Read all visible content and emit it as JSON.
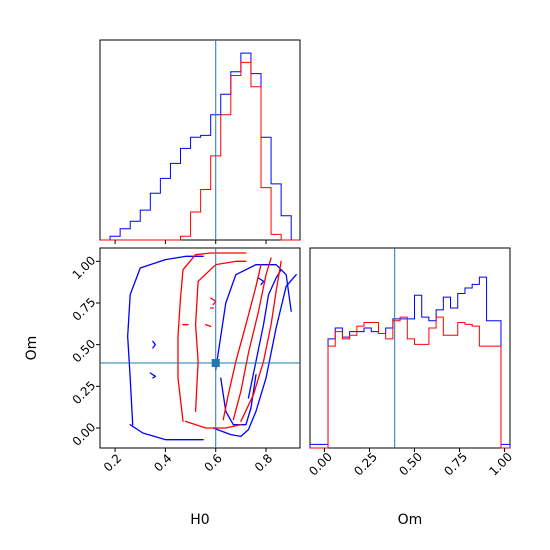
{
  "chart_data": {
    "type": "corner",
    "parameters": [
      "H0",
      "Om"
    ],
    "truths": {
      "H0": 0.6,
      "Om": 0.39
    },
    "colors": {
      "series_a": "#0000ff",
      "series_b": "#ff0000",
      "truth": "#1f77b4"
    },
    "grid": false,
    "legend": "none",
    "panels": [
      {
        "id": "h0-hist",
        "type": "step-histogram",
        "xlim": [
          0.14,
          0.935
        ],
        "ylim": [
          0,
          1.07
        ],
        "bins": [
          0.14,
          0.18,
          0.22,
          0.26,
          0.3,
          0.34,
          0.38,
          0.42,
          0.46,
          0.5,
          0.54,
          0.58,
          0.62,
          0.66,
          0.7,
          0.74,
          0.78,
          0.82,
          0.86,
          0.9,
          0.935
        ],
        "series": [
          {
            "color": "series_a",
            "values": [
              0.0,
              0.02,
              0.06,
              0.1,
              0.16,
              0.25,
              0.33,
              0.41,
              0.49,
              0.55,
              0.56,
              0.67,
              0.78,
              0.9,
              1.0,
              0.89,
              0.55,
              0.3,
              0.13,
              0.0
            ]
          },
          {
            "color": "series_b",
            "values": [
              0.0,
              0.0,
              0.0,
              0.0,
              0.0,
              0.0,
              0.0,
              0.0,
              0.02,
              0.15,
              0.27,
              0.45,
              0.67,
              0.88,
              0.95,
              0.82,
              0.28,
              0.03,
              0.0,
              0.0
            ]
          }
        ]
      },
      {
        "id": "om-hist",
        "type": "step-histogram",
        "xlim": [
          -0.08,
          1.03
        ],
        "ylim": [
          0,
          1.1
        ],
        "bins": [
          -0.08,
          -0.02,
          0.02,
          0.06,
          0.1,
          0.14,
          0.18,
          0.22,
          0.26,
          0.3,
          0.34,
          0.38,
          0.42,
          0.46,
          0.5,
          0.54,
          0.58,
          0.62,
          0.66,
          0.7,
          0.74,
          0.78,
          0.82,
          0.86,
          0.9,
          0.94,
          0.98,
          1.03
        ],
        "series": [
          {
            "color": "series_a",
            "values": [
              0.02,
              0.02,
              0.6,
              0.66,
              0.61,
              0.64,
              0.64,
              0.66,
              0.64,
              0.63,
              0.66,
              0.71,
              0.71,
              0.71,
              0.84,
              0.72,
              0.7,
              0.76,
              0.83,
              0.77,
              0.85,
              0.88,
              0.9,
              0.94,
              0.7,
              0.7,
              0.02
            ]
          },
          {
            "color": "series_b",
            "values": [
              0.0,
              0.0,
              0.56,
              0.64,
              0.6,
              0.62,
              0.67,
              0.69,
              0.69,
              0.63,
              0.6,
              0.7,
              0.72,
              0.6,
              0.57,
              0.57,
              0.66,
              0.72,
              0.62,
              0.62,
              0.69,
              0.68,
              0.67,
              0.56,
              0.56,
              0.56,
              0.0
            ]
          }
        ]
      },
      {
        "id": "joint",
        "type": "contour",
        "xlim": [
          0.14,
          0.935
        ],
        "ylim": [
          -0.12,
          1.08
        ],
        "series": [
          {
            "color": "series_a",
            "lines": [
              [
                [
                  0.27,
                  0.02
                ],
                [
                  0.26,
                  0.3
                ],
                [
                  0.25,
                  0.55
                ],
                [
                  0.26,
                  0.8
                ],
                [
                  0.3,
                  0.96
                ],
                [
                  0.4,
                  1.01
                ],
                [
                  0.48,
                  1.03
                ],
                [
                  0.55,
                  1.03
                ]
              ],
              [
                [
                  0.26,
                  0.02
                ],
                [
                  0.31,
                  -0.03
                ],
                [
                  0.4,
                  -0.07
                ],
                [
                  0.5,
                  -0.07
                ],
                [
                  0.55,
                  -0.07
                ]
              ],
              [
                [
                  0.59,
                  0.0
                ],
                [
                  0.66,
                  -0.04
                ],
                [
                  0.7,
                  -0.05
                ],
                [
                  0.73,
                  -0.01
                ],
                [
                  0.76,
                  0.1
                ],
                [
                  0.8,
                  0.3
                ],
                [
                  0.84,
                  0.6
                ],
                [
                  0.88,
                  0.85
                ],
                [
                  0.92,
                  0.92
                ]
              ],
              [
                [
                  0.6,
                  0.35
                ],
                [
                  0.62,
                  0.55
                ],
                [
                  0.64,
                  0.75
                ],
                [
                  0.68,
                  0.92
                ],
                [
                  0.76,
                  0.98
                ],
                [
                  0.84,
                  0.98
                ],
                [
                  0.88,
                  0.92
                ],
                [
                  0.9,
                  0.7
                ]
              ],
              [
                [
                  0.62,
                  0.3
                ],
                [
                  0.64,
                  0.1
                ],
                [
                  0.67,
                  0.02
                ],
                [
                  0.72,
                  0.02
                ],
                [
                  0.74,
                  0.12
                ],
                [
                  0.76,
                  0.32
                ]
              ],
              [
                [
                  0.73,
                  0.18
                ],
                [
                  0.76,
                  0.4
                ],
                [
                  0.79,
                  0.62
                ],
                [
                  0.81,
                  0.8
                ],
                [
                  0.84,
                  0.9
                ],
                [
                  0.86,
                  0.95
                ]
              ],
              [
                [
                  0.35,
                  0.52
                ],
                [
                  0.36,
                  0.5
                ],
                [
                  0.35,
                  0.48
                ]
              ],
              [
                [
                  0.34,
                  0.33
                ],
                [
                  0.36,
                  0.31
                ],
                [
                  0.35,
                  0.3
                ]
              ],
              [
                [
                  0.77,
                  0.9
                ],
                [
                  0.79,
                  0.88
                ],
                [
                  0.78,
                  0.86
                ]
              ]
            ]
          },
          {
            "color": "series_b",
            "lines": [
              [
                [
                  0.47,
                  0.04
                ],
                [
                  0.45,
                  0.3
                ],
                [
                  0.45,
                  0.55
                ],
                [
                  0.46,
                  0.78
                ],
                [
                  0.47,
                  0.95
                ],
                [
                  0.52,
                  1.04
                ],
                [
                  0.58,
                  1.05
                ],
                [
                  0.66,
                  1.05
                ],
                [
                  0.72,
                  1.05
                ]
              ],
              [
                [
                  0.52,
                  0.1
                ],
                [
                  0.53,
                  0.4
                ],
                [
                  0.52,
                  0.62
                ],
                [
                  0.53,
                  0.88
                ],
                [
                  0.6,
                  0.98
                ],
                [
                  0.68,
                  1.0
                ],
                [
                  0.72,
                  1.0
                ]
              ],
              [
                [
                  0.63,
                  0.05
                ],
                [
                  0.65,
                  0.2
                ],
                [
                  0.68,
                  0.4
                ],
                [
                  0.72,
                  0.62
                ],
                [
                  0.76,
                  0.85
                ],
                [
                  0.78,
                  0.98
                ]
              ],
              [
                [
                  0.67,
                  0.05
                ],
                [
                  0.7,
                  0.22
                ],
                [
                  0.73,
                  0.45
                ],
                [
                  0.77,
                  0.7
                ],
                [
                  0.8,
                  0.92
                ],
                [
                  0.82,
                  1.02
                ]
              ],
              [
                [
                  0.7,
                  0.04
                ],
                [
                  0.75,
                  0.2
                ],
                [
                  0.79,
                  0.4
                ],
                [
                  0.82,
                  0.62
                ],
                [
                  0.84,
                  0.82
                ],
                [
                  0.86,
                  1.0
                ]
              ],
              [
                [
                  0.48,
                  0.04
                ],
                [
                  0.56,
                  0.0
                ],
                [
                  0.64,
                  0.0
                ],
                [
                  0.7,
                  0.02
                ]
              ],
              [
                [
                  0.56,
                  0.62
                ],
                [
                  0.58,
                  0.61
                ]
              ],
              [
                [
                  0.58,
                  0.78
                ],
                [
                  0.6,
                  0.76
                ],
                [
                  0.59,
                  0.74
                ]
              ],
              [
                [
                  0.58,
                  0.72
                ],
                [
                  0.59,
                  0.72
                ]
              ],
              [
                [
                  0.47,
                  0.62
                ],
                [
                  0.49,
                  0.62
                ]
              ]
            ]
          }
        ]
      }
    ],
    "axes": {
      "x_joint": {
        "label": "H0",
        "ticks": [
          0.2,
          0.4,
          0.6,
          0.8
        ],
        "tick_labels": [
          "0.2",
          "0.4",
          "0.6",
          "0.8"
        ]
      },
      "y_joint": {
        "label": "Om",
        "ticks": [
          0.0,
          0.25,
          0.5,
          0.75,
          1.0
        ],
        "tick_labels": [
          "0.00",
          "0.25",
          "0.50",
          "0.75",
          "1.00"
        ]
      },
      "x_om": {
        "label": "Om",
        "ticks": [
          0.0,
          0.25,
          0.5,
          0.75,
          1.0
        ],
        "tick_labels": [
          "0.00",
          "0.25",
          "0.50",
          "0.75",
          "1.00"
        ]
      }
    }
  }
}
